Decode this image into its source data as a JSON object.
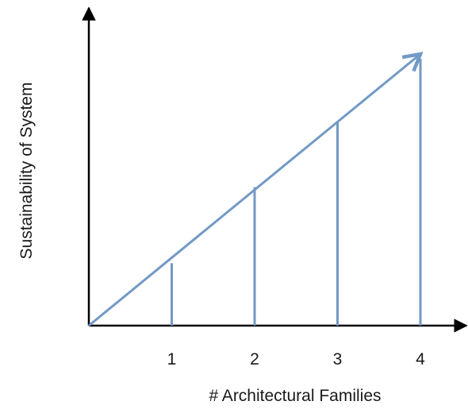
{
  "chart_data": {
    "type": "line",
    "xlabel": "# Architectural Families",
    "ylabel": "Sustainability of System",
    "x_ticks": [
      "1",
      "2",
      "3",
      "4"
    ],
    "x": [
      1,
      2,
      3,
      4
    ],
    "values": [
      0.23,
      0.51,
      0.75,
      1.0
    ],
    "xlim": [
      0,
      4.6
    ],
    "ylim": [
      0,
      1.15
    ],
    "line_color": "#7399c6",
    "axis_color": "#000000",
    "grid": false,
    "legend": "none"
  }
}
